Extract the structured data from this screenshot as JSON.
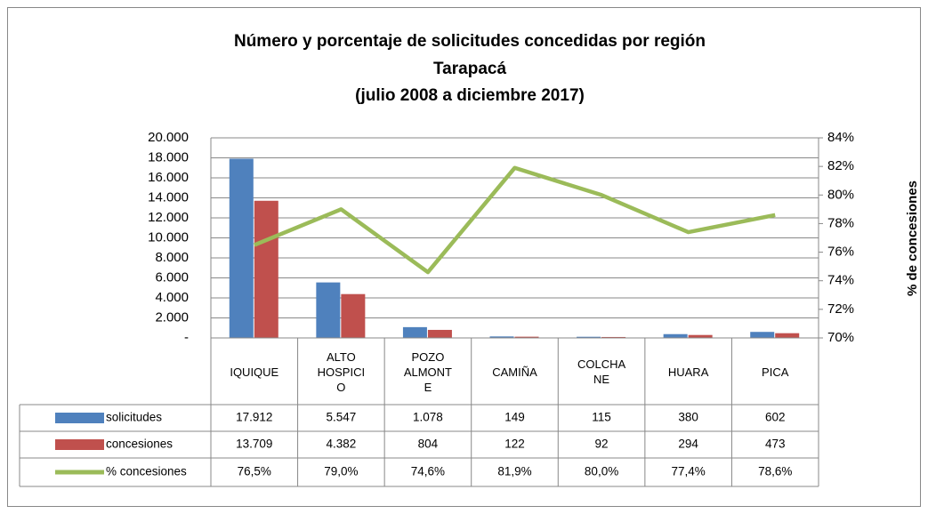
{
  "chart_data": {
    "type": "bar-line",
    "title": [
      "Número y porcentaje de solicitudes concedidas por región",
      "Tarapacá",
      "(julio 2008 a diciembre 2017)"
    ],
    "y2_label": "% de concesiones",
    "categories": [
      "IQUIQUE",
      "ALTO HOSPICIO",
      "POZO ALMONTE",
      "CAMIÑA",
      "COLCHANE",
      "HUARA",
      "PICA"
    ],
    "series": [
      {
        "name": "solicitudes",
        "type": "bar",
        "color": "#4f81bd",
        "values": [
          17912,
          5547,
          1078,
          149,
          115,
          380,
          602
        ],
        "value_labels": [
          "17.912",
          "5.547",
          "1.078",
          "149",
          "115",
          "380",
          "602"
        ]
      },
      {
        "name": "concesiones",
        "type": "bar",
        "color": "#c0504d",
        "values": [
          13709,
          4382,
          804,
          122,
          92,
          294,
          473
        ],
        "value_labels": [
          "13.709",
          "4.382",
          "804",
          "122",
          "92",
          "294",
          "473"
        ]
      },
      {
        "name": "% concesiones",
        "type": "line",
        "axis": "y2",
        "color": "#9bbb59",
        "values": [
          76.5,
          79.0,
          74.6,
          81.9,
          80.0,
          77.4,
          78.6
        ],
        "value_labels": [
          "76,5%",
          "79,0%",
          "74,6%",
          "81,9%",
          "80,0%",
          "77,4%",
          "78,6%"
        ]
      }
    ],
    "ylim": [
      0,
      20000
    ],
    "yticks": [
      {
        "value": 0,
        "label": "-"
      },
      {
        "value": 2000,
        "label": "2.000"
      },
      {
        "value": 4000,
        "label": "4.000"
      },
      {
        "value": 6000,
        "label": "6.000"
      },
      {
        "value": 8000,
        "label": "8.000"
      },
      {
        "value": 10000,
        "label": "10.000"
      },
      {
        "value": 12000,
        "label": "12.000"
      },
      {
        "value": 14000,
        "label": "14.000"
      },
      {
        "value": 16000,
        "label": "16.000"
      },
      {
        "value": 18000,
        "label": "18.000"
      },
      {
        "value": 20000,
        "label": "20.000"
      }
    ],
    "y2lim": [
      70,
      84
    ],
    "y2ticks": [
      {
        "value": 70,
        "label": "70%"
      },
      {
        "value": 72,
        "label": "72%"
      },
      {
        "value": 74,
        "label": "74%"
      },
      {
        "value": 76,
        "label": "76%"
      },
      {
        "value": 78,
        "label": "78%"
      },
      {
        "value": 80,
        "label": "80%"
      },
      {
        "value": 82,
        "label": "82%"
      },
      {
        "value": 84,
        "label": "84%"
      }
    ],
    "grid": true
  }
}
